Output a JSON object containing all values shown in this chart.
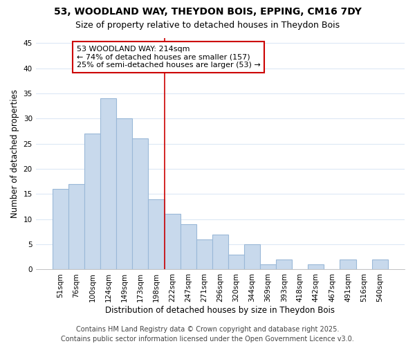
{
  "title1": "53, WOODLAND WAY, THEYDON BOIS, EPPING, CM16 7DY",
  "title2": "Size of property relative to detached houses in Theydon Bois",
  "xlabel": "Distribution of detached houses by size in Theydon Bois",
  "ylabel": "Number of detached properties",
  "categories": [
    "51sqm",
    "76sqm",
    "100sqm",
    "124sqm",
    "149sqm",
    "173sqm",
    "198sqm",
    "222sqm",
    "247sqm",
    "271sqm",
    "296sqm",
    "320sqm",
    "344sqm",
    "369sqm",
    "393sqm",
    "418sqm",
    "442sqm",
    "467sqm",
    "491sqm",
    "516sqm",
    "540sqm"
  ],
  "values": [
    16,
    17,
    27,
    34,
    30,
    26,
    14,
    11,
    9,
    6,
    7,
    3,
    5,
    1,
    2,
    0,
    1,
    0,
    2,
    0,
    2
  ],
  "bar_color": "#c8d9ec",
  "bar_edge_color": "#9ab8d8",
  "vline_color": "#cc0000",
  "annotation_title": "53 WOODLAND WAY: 214sqm",
  "annotation_line1": "← 74% of detached houses are smaller (157)",
  "annotation_line2": "25% of semi-detached houses are larger (53) →",
  "annotation_box_color": "#ffffff",
  "annotation_box_edge_color": "#cc0000",
  "ylim": [
    0,
    46
  ],
  "yticks": [
    0,
    5,
    10,
    15,
    20,
    25,
    30,
    35,
    40,
    45
  ],
  "footer": "Contains HM Land Registry data © Crown copyright and database right 2025.\nContains public sector information licensed under the Open Government Licence v3.0.",
  "background_color": "#ffffff",
  "grid_color": "#dce8f5",
  "title_fontsize": 10,
  "subtitle_fontsize": 9,
  "axis_label_fontsize": 8.5,
  "tick_fontsize": 7.5,
  "annotation_fontsize": 8,
  "footer_fontsize": 7
}
